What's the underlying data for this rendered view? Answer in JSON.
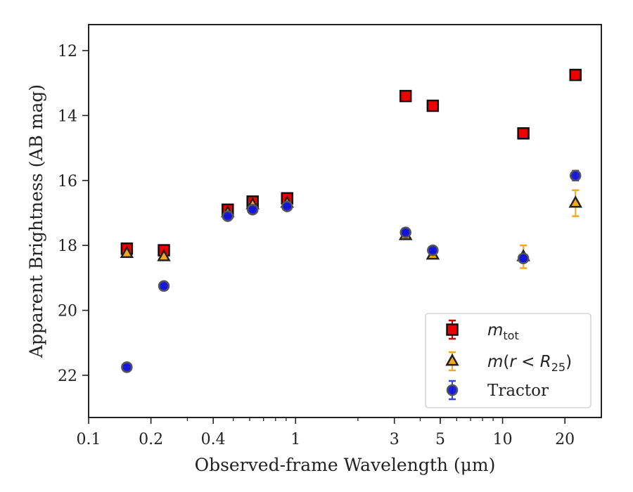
{
  "chart_data": {
    "type": "scatter",
    "title": "",
    "xlabel": "Observed-frame Wavelength (μm)",
    "ylabel": "Apparent Brightness (AB mag)",
    "xscale": "log",
    "xlim": [
      0.1,
      30
    ],
    "ylim": [
      23.3,
      11.2
    ],
    "y_inverted": true,
    "x_ticks": [
      {
        "value": 0.1,
        "label": "0.1"
      },
      {
        "value": 0.2,
        "label": "0.2"
      },
      {
        "value": 0.4,
        "label": "0.4"
      },
      {
        "value": 1,
        "label": "1"
      },
      {
        "value": 3,
        "label": "3"
      },
      {
        "value": 5,
        "label": "5"
      },
      {
        "value": 10,
        "label": "10"
      },
      {
        "value": 20,
        "label": "20"
      }
    ],
    "y_ticks": [
      {
        "value": 12,
        "label": "12"
      },
      {
        "value": 14,
        "label": "14"
      },
      {
        "value": 16,
        "label": "16"
      },
      {
        "value": 18,
        "label": "18"
      },
      {
        "value": 20,
        "label": "20"
      },
      {
        "value": 22,
        "label": "22"
      }
    ],
    "grid": false,
    "legend_position": "bottom-right",
    "series": [
      {
        "name": "m_tot",
        "legend_label": "m_tot",
        "marker": "square",
        "color": "#ee0000",
        "error_color": "#cc0000",
        "points": [
          {
            "x": 0.153,
            "y": 18.1,
            "err": 0.1
          },
          {
            "x": 0.231,
            "y": 18.15,
            "err": 0.1
          },
          {
            "x": 0.47,
            "y": 16.9,
            "err": 0.1
          },
          {
            "x": 0.62,
            "y": 16.65,
            "err": 0.1
          },
          {
            "x": 0.91,
            "y": 16.55,
            "err": 0.1
          },
          {
            "x": 3.4,
            "y": 13.4,
            "err": 0.05
          },
          {
            "x": 4.6,
            "y": 13.7,
            "err": 0.05
          },
          {
            "x": 12.6,
            "y": 14.55,
            "err": 0.05
          },
          {
            "x": 22.5,
            "y": 12.75,
            "err": 0.05
          }
        ]
      },
      {
        "name": "m(r < R25)",
        "legend_label": "m(r < R25)",
        "marker": "triangle",
        "color": "#f5a623",
        "error_color": "#f5a623",
        "points": [
          {
            "x": 0.153,
            "y": 18.25,
            "err": 0.05
          },
          {
            "x": 0.231,
            "y": 18.35,
            "err": 0.05
          },
          {
            "x": 0.47,
            "y": 17.0,
            "err": 0.05
          },
          {
            "x": 0.62,
            "y": 16.75,
            "err": 0.05
          },
          {
            "x": 0.91,
            "y": 16.7,
            "err": 0.05
          },
          {
            "x": 3.4,
            "y": 17.7,
            "err": 0.05
          },
          {
            "x": 4.6,
            "y": 18.3,
            "err": 0.05
          },
          {
            "x": 12.6,
            "y": 18.35,
            "err": 0.35
          },
          {
            "x": 22.5,
            "y": 16.7,
            "err": 0.4
          }
        ]
      },
      {
        "name": "Tractor",
        "legend_label": "Tractor",
        "marker": "circle",
        "color": "#1111dd",
        "error_color": "#3344ee",
        "points": [
          {
            "x": 0.153,
            "y": 21.75,
            "err": 0.05
          },
          {
            "x": 0.231,
            "y": 19.25,
            "err": 0.05
          },
          {
            "x": 0.47,
            "y": 17.1,
            "err": 0.05
          },
          {
            "x": 0.62,
            "y": 16.9,
            "err": 0.05
          },
          {
            "x": 0.91,
            "y": 16.8,
            "err": 0.05
          },
          {
            "x": 3.4,
            "y": 17.6,
            "err": 0.05
          },
          {
            "x": 4.6,
            "y": 18.15,
            "err": 0.05
          },
          {
            "x": 12.6,
            "y": 18.4,
            "err": 0.1
          },
          {
            "x": 22.5,
            "y": 15.85,
            "err": 0.15
          }
        ]
      }
    ]
  }
}
